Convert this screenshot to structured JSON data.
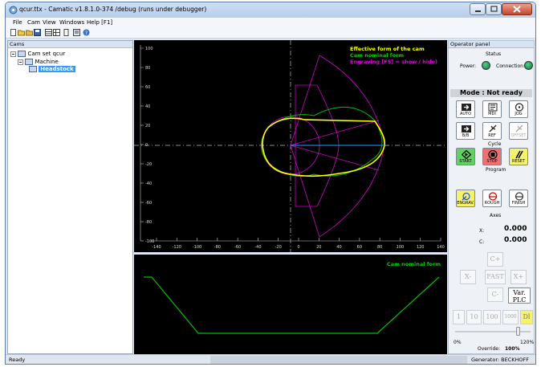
{
  "window": {
    "title": "qcur.ttx - Camatic v1.8.1.0-374 /debug (runs under debugger)"
  },
  "menu": {
    "items": [
      "File",
      "Cam",
      "View",
      "Windows",
      "Help [F1]"
    ]
  },
  "toolbar": {
    "icons": [
      "new-icon",
      "open-icon",
      "folder-icon",
      "save-icon",
      "grid-icon",
      "table-icon",
      "panel-icon",
      "list-icon",
      "help-icon"
    ]
  },
  "cams_panel": {
    "header": "Cams",
    "tree": [
      {
        "label": "Cam set qcur",
        "level": 0
      },
      {
        "label": "Machine",
        "level": 1
      },
      {
        "label": "Headstock",
        "level": 2,
        "selected": true
      }
    ]
  },
  "plot_top": {
    "legend": [
      {
        "text": "Effective form of the cam",
        "color": "#ffff00"
      },
      {
        "text": "Cam nominal form",
        "color": "#00d000"
      },
      {
        "text": "Engraving [F5] = show / hide)",
        "color": "#e000e0"
      }
    ],
    "x_ticks": [
      "-140",
      "-120",
      "-100",
      "-80",
      "-60",
      "-40",
      "-20",
      "0",
      "20",
      "40",
      "60",
      "80",
      "100",
      "120",
      "140"
    ],
    "y_ticks": [
      "100",
      "80",
      "60",
      "40",
      "20",
      "0",
      "-20",
      "-40",
      "-60",
      "-80",
      "-100"
    ]
  },
  "plot_bottom": {
    "legend": "Cam nominal form",
    "legend_color": "#00d000"
  },
  "operator_panel": {
    "header": "Operator panel",
    "status_title": "Status",
    "power_label": "Power:",
    "connection_label": "Connection:",
    "mode": "Mode : Not ready",
    "buttons_row1": [
      "AUTO",
      "MDI",
      "JOG"
    ],
    "buttons_row2": [
      "B/B",
      "REF",
      "OFFSET"
    ],
    "cycle_title": "Cycle",
    "cycle_buttons": [
      "START",
      "STOP",
      "RESET"
    ],
    "program_title": "Program",
    "program_buttons": [
      "ENGRAV.",
      "ROUGH",
      "FINISH"
    ],
    "axes_title": "Axes",
    "axes": [
      {
        "label": "X:",
        "value": "0.000"
      },
      {
        "label": "C:",
        "value": "0.000"
      }
    ],
    "jog_buttons": {
      "cplus": "C+",
      "xminus": "X-",
      "fast": "FAST",
      "xplus": "X+",
      "cminus": "C-",
      "varplc": "Var. PLC"
    },
    "step_buttons": [
      "1",
      "10",
      "100",
      "1000",
      "Dl"
    ],
    "override": {
      "min": "0%",
      "max": "120%",
      "label": "Override:",
      "value": "100%",
      "level": 0.833
    }
  },
  "statusbar": {
    "left": "Ready",
    "right": "Generator: BECKHOFF"
  }
}
